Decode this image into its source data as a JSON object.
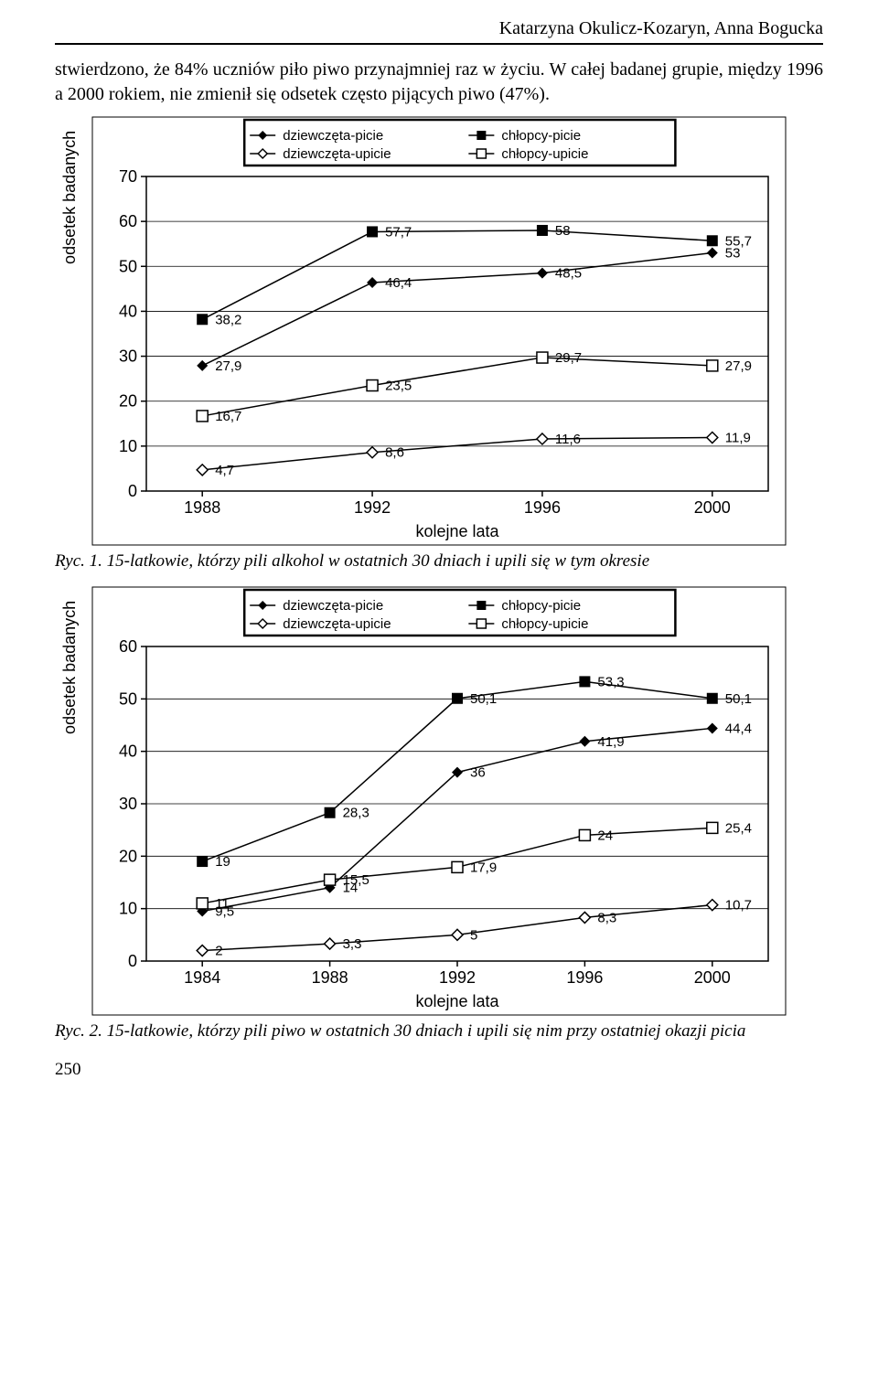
{
  "header_name": "Katarzyna Okulicz-Kozaryn, Anna Bogucka",
  "intro": "stwierdzono, że 84% uczniów piło piwo przynajmniej raz w życiu. W całej badanej grupie, między 1996 a 2000 rokiem, nie zmienił się odsetek często pijących piwo (47%).",
  "legend": {
    "series": [
      {
        "id": "dp",
        "label": "dziewczęta-picie",
        "marker": "diamond-solid",
        "color": "#000000"
      },
      {
        "id": "cp",
        "label": "chłopcy-picie",
        "marker": "square-solid",
        "color": "#000000"
      },
      {
        "id": "du",
        "label": "dziewczęta-upicie",
        "marker": "diamond-hollow",
        "color": "#000000"
      },
      {
        "id": "cu",
        "label": "chłopcy-upicie",
        "marker": "square-hollow",
        "color": "#000000"
      }
    ]
  },
  "chart1": {
    "type": "line",
    "x_categories": [
      "1988",
      "1992",
      "1996",
      "2000"
    ],
    "x_label": "kolejne lata",
    "y_label": "odsetek badanych",
    "ylim": [
      0,
      70
    ],
    "ytick_step": 10,
    "series": {
      "cp": [
        38.2,
        57.7,
        58,
        55.7
      ],
      "dp": [
        27.9,
        46.4,
        48.5,
        53
      ],
      "cu": [
        16.7,
        23.5,
        29.7,
        27.9
      ],
      "du": [
        4.7,
        8.6,
        11.6,
        11.9
      ]
    },
    "data_labels": {
      "cp": [
        "38,2",
        "57,7",
        "58",
        "55,7"
      ],
      "dp": [
        "27,9",
        "46,4",
        "48,5",
        "53"
      ],
      "cu": [
        "16,7",
        "23,5",
        "29,7",
        "27,9"
      ],
      "du": [
        "4,7",
        "8,6",
        "11,6",
        "11,9"
      ]
    },
    "line_color": "#000000",
    "grid_color": "#000000",
    "background": "#ffffff",
    "line_width": 1.5,
    "marker_size": 8,
    "label_fontsize": 15,
    "tick_fontsize": 18,
    "axis_label_fontsize": 18
  },
  "caption1": "Ryc. 1. 15-latkowie, którzy pili alkohol w ostatnich 30 dniach i upili się w tym okresie",
  "chart2": {
    "type": "line",
    "x_categories": [
      "1984",
      "1988",
      "1992",
      "1996",
      "2000"
    ],
    "x_label": "kolejne lata",
    "y_label": "odsetek badanych",
    "ylim": [
      0,
      60
    ],
    "ytick_step": 10,
    "series": {
      "cp": [
        19,
        28.3,
        50.1,
        53.3,
        50.1
      ],
      "dp": [
        9.5,
        14,
        36,
        41.9,
        44.4
      ],
      "cu": [
        11,
        15.5,
        17.9,
        24,
        25.4
      ],
      "du": [
        2,
        3.3,
        5,
        8.3,
        10.7
      ]
    },
    "data_labels": {
      "cp": [
        "19",
        "28,3",
        "50,1",
        "53,3",
        "50,1"
      ],
      "dp": [
        "9,5",
        "14",
        "36",
        "41,9",
        "44,4"
      ],
      "cu": [
        "11",
        "15,5",
        "17,9",
        "24",
        "25,4"
      ],
      "du": [
        "2",
        "3,3",
        "5",
        "8,3",
        "10,7"
      ]
    },
    "line_color": "#000000",
    "grid_color": "#000000",
    "background": "#ffffff",
    "line_width": 1.5,
    "marker_size": 8,
    "label_fontsize": 15,
    "tick_fontsize": 18,
    "axis_label_fontsize": 18
  },
  "caption2": "Ryc. 2. 15-latkowie, którzy pili piwo w ostatnich 30 dniach i upili się nim przy ostatniej okazji picia",
  "page_number": "250"
}
